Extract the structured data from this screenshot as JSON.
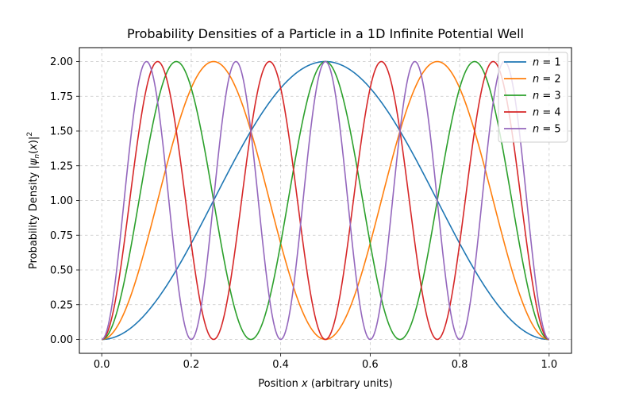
{
  "chart_data": {
    "type": "line",
    "title": "Probability Densities of a Particle in a 1D Infinite Potential Well",
    "xlabel": "Position x (arbitrary units)",
    "ylabel": "Probability Density |ψn(x)|²",
    "xlim": [
      -0.05,
      1.05
    ],
    "ylim": [
      -0.1,
      2.1
    ],
    "xticks": [
      0.0,
      0.2,
      0.4,
      0.6,
      0.8,
      1.0
    ],
    "xtick_labels": [
      "0.0",
      "0.2",
      "0.4",
      "0.6",
      "0.8",
      "1.0"
    ],
    "yticks": [
      0.0,
      0.25,
      0.5,
      0.75,
      1.0,
      1.25,
      1.5,
      1.75,
      2.0
    ],
    "ytick_labels": [
      "0.00",
      "0.25",
      "0.50",
      "0.75",
      "1.00",
      "1.25",
      "1.50",
      "1.75",
      "2.00"
    ],
    "grid": true,
    "legend_position": "top-right",
    "function": "2*sin(n*pi*x)^2",
    "x_range": [
      0,
      1
    ],
    "series": [
      {
        "name": "n = 1",
        "n": 1,
        "color": "#1f77b4"
      },
      {
        "name": "n = 2",
        "n": 2,
        "color": "#ff7f0e"
      },
      {
        "name": "n = 3",
        "n": 3,
        "color": "#2ca02c"
      },
      {
        "name": "n = 4",
        "n": 4,
        "color": "#d62728"
      },
      {
        "name": "n = 5",
        "n": 5,
        "color": "#9467bd"
      }
    ]
  }
}
